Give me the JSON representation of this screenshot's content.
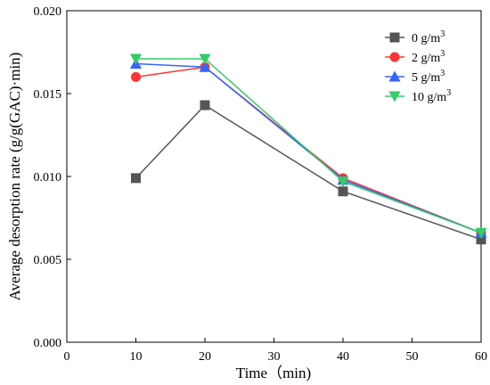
{
  "chart_data": {
    "type": "line",
    "xlabel": "Time（min)",
    "ylabel": "Average desorption rate (g/g(GAC)·min)",
    "xlim": [
      0,
      60
    ],
    "ylim": [
      0,
      0.02
    ],
    "xticks": [
      0,
      10,
      20,
      30,
      40,
      50,
      60
    ],
    "yticks": [
      0,
      0.005,
      0.01,
      0.015,
      0.02
    ],
    "xtick_labels": [
      "0",
      "10",
      "20",
      "30",
      "40",
      "50",
      "60"
    ],
    "ytick_labels": [
      "0.000",
      "0.005",
      "0.010",
      "0.015",
      "0.020"
    ],
    "grid": false,
    "legend_position": "top-right",
    "x": [
      10,
      20,
      40,
      60
    ],
    "series": [
      {
        "name": "0 g/m",
        "name_sup": "3",
        "values": [
          0.0099,
          0.0143,
          0.0091,
          0.0062
        ],
        "color": "#555555",
        "marker": "square"
      },
      {
        "name": "2 g/m",
        "name_sup": "3",
        "values": [
          0.016,
          0.0166,
          0.0099,
          0.0066
        ],
        "color": "#ff3333",
        "marker": "circle"
      },
      {
        "name": "5 g/m",
        "name_sup": "3",
        "values": [
          0.0168,
          0.0166,
          0.0098,
          0.0066
        ],
        "color": "#3366ff",
        "marker": "triangle-up"
      },
      {
        "name": "10 g/m",
        "name_sup": "3",
        "values": [
          0.0171,
          0.0171,
          0.0097,
          0.0066
        ],
        "color": "#33cc66",
        "marker": "triangle-down"
      }
    ]
  }
}
